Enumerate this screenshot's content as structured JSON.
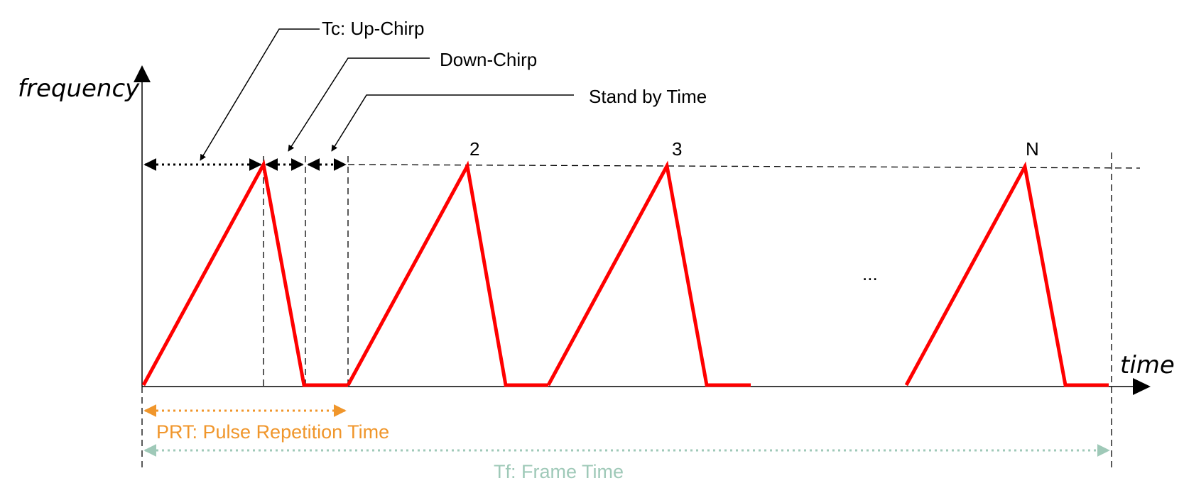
{
  "axes": {
    "y_label": "frequency",
    "x_label": "time"
  },
  "callouts": {
    "up_chirp": "Tc: Up-Chirp",
    "down_chirp": "Down-Chirp",
    "standby": "Stand by Time"
  },
  "chirp_labels": {
    "second": "2",
    "third": "3",
    "last": "N",
    "ellipsis": "..."
  },
  "spans": {
    "prt": "PRT: Pulse Repetition Time",
    "frame": "Tf: Frame Time"
  },
  "colors": {
    "chirp": "#ff0000",
    "prt": "#f0962b",
    "frame": "#9fc9b8",
    "ink": "#000000"
  }
}
